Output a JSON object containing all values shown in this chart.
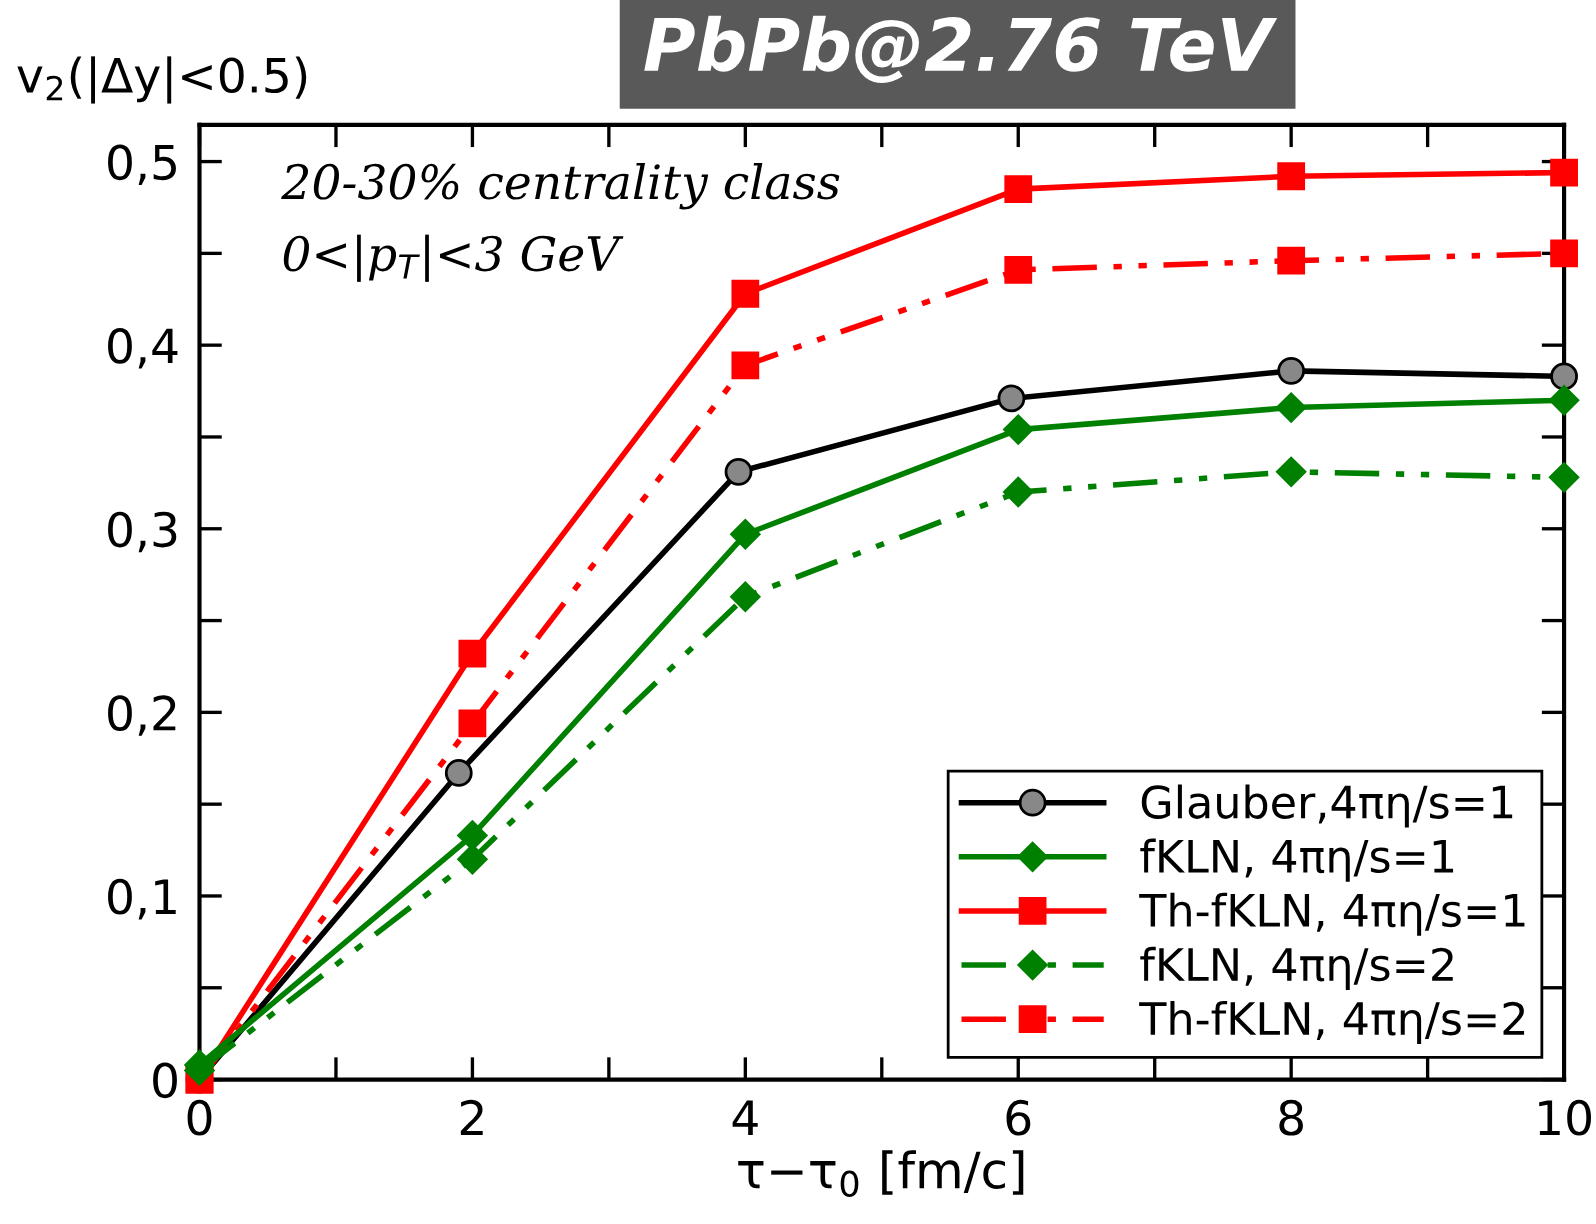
{
  "chart_data": {
    "type": "line",
    "title": "PbPb@2.76 TeV",
    "ylabel": "v$_{2}$(|Δy|<0.5)",
    "xlabel": "τ−τ$_{0}$ [fm/c]",
    "annotations": [
      "20-30% centrality class",
      "0<|p$_{T}$|<3 GeV"
    ],
    "xlim": [
      0,
      10
    ],
    "ylim": [
      0,
      0.52
    ],
    "xticks": [
      0,
      {
        "value": 1,
        "label": null
      },
      2,
      {
        "value": 3,
        "label": null
      },
      4,
      {
        "value": 5,
        "label": null
      },
      6,
      {
        "value": 7,
        "label": null
      },
      8,
      {
        "value": 9,
        "label": null
      },
      10
    ],
    "yticks": [
      {
        "value": 0,
        "label": "0"
      },
      {
        "value": 0.05,
        "label": null
      },
      {
        "value": 0.1,
        "label": "0,1"
      },
      {
        "value": 0.15,
        "label": null
      },
      {
        "value": 0.2,
        "label": "0,2"
      },
      {
        "value": 0.25,
        "label": null
      },
      {
        "value": 0.3,
        "label": "0,3"
      },
      {
        "value": 0.35,
        "label": null
      },
      {
        "value": 0.4,
        "label": "0,4"
      },
      {
        "value": 0.45,
        "label": null
      },
      {
        "value": 0.5,
        "label": "0,5"
      }
    ],
    "legend": "bottom right",
    "grid": false,
    "series": [
      {
        "name": "Glauber,4πη/s=1",
        "color": "#000000",
        "marker": "circle",
        "line_style": "solid",
        "x": [
          0,
          1.9,
          3.95,
          5.95,
          8,
          10
        ],
        "values": [
          0,
          0.167,
          0.331,
          0.371,
          0.386,
          0.383
        ]
      },
      {
        "name": "fKLN, 4πη/s=1",
        "color": "#008000",
        "marker": "diamond",
        "line_style": "solid",
        "x": [
          0,
          2,
          4,
          6,
          8,
          10
        ],
        "values": [
          0.008,
          0.133,
          0.297,
          0.354,
          0.366,
          0.37
        ]
      },
      {
        "name": "Th-fKLN, 4πη/s=1",
        "color": "#ff0000",
        "marker": "square",
        "line_style": "solid",
        "x": [
          0,
          2,
          4,
          6,
          8,
          10
        ],
        "values": [
          0,
          0.232,
          0.428,
          0.485,
          0.492,
          0.494
        ]
      },
      {
        "name": "fKLN, 4πη/s=2",
        "color": "#008000",
        "marker": "diamond",
        "line_style": "dashed",
        "x": [
          0,
          2,
          4,
          6,
          8,
          10
        ],
        "values": [
          0.005,
          0.12,
          0.263,
          0.32,
          0.331,
          0.328
        ]
      },
      {
        "name": "Th-fKLN, 4πη/s=2",
        "color": "#ff0000",
        "marker": "square",
        "line_style": "dashed",
        "x": [
          0,
          2,
          4,
          6,
          8,
          10
        ],
        "values": [
          0,
          0.194,
          0.389,
          0.441,
          0.446,
          0.45
        ]
      }
    ]
  }
}
